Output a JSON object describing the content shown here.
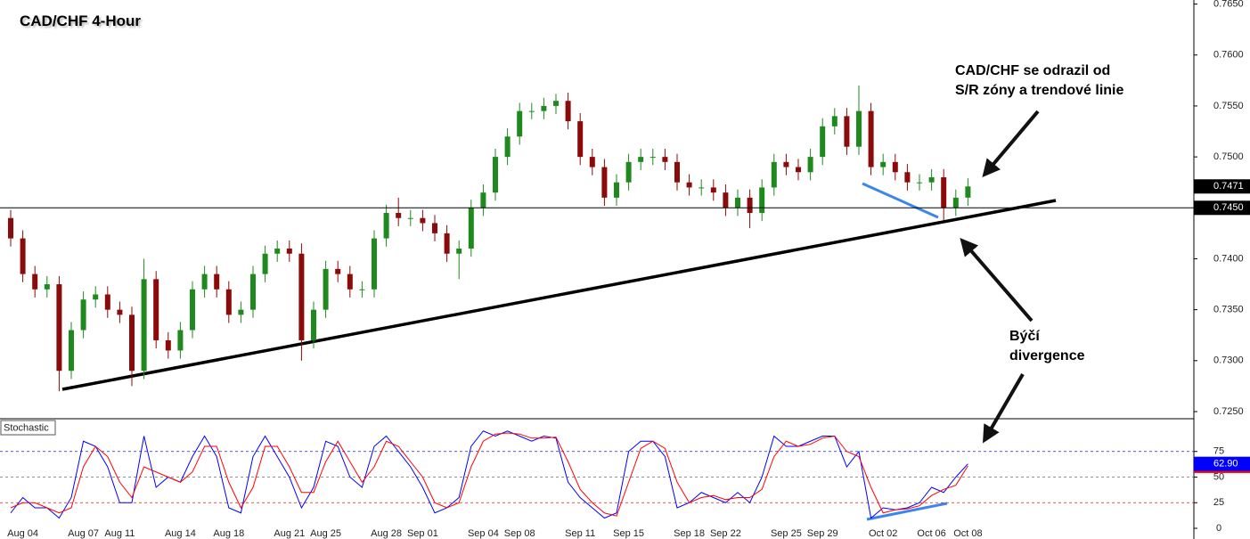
{
  "chart_data": [
    {
      "type": "candlestick",
      "title": "CAD/CHF 4-Hour",
      "categories": [
        null,
        "Aug 04",
        null,
        null,
        null,
        null,
        "Aug 07",
        null,
        null,
        "Aug 11",
        null,
        null,
        null,
        null,
        "Aug 14",
        null,
        null,
        null,
        "Aug 18",
        null,
        null,
        null,
        null,
        "Aug 21",
        null,
        null,
        "Aug 25",
        null,
        null,
        null,
        null,
        "Aug 28",
        null,
        null,
        "Sep 01",
        null,
        null,
        null,
        null,
        "Sep 04",
        null,
        null,
        "Sep 08",
        null,
        null,
        null,
        null,
        "Sep 11",
        null,
        null,
        null,
        "Sep 15",
        null,
        null,
        null,
        null,
        "Sep 18",
        null,
        null,
        "Sep 22",
        null,
        null,
        null,
        null,
        "Sep 25",
        null,
        null,
        "Sep 29",
        null,
        null,
        null,
        null,
        "Oct 02",
        null,
        null,
        null,
        "Oct 06",
        null,
        null,
        "Oct 08"
      ],
      "open": [
        0.744,
        0.742,
        0.7385,
        0.737,
        0.7375,
        0.729,
        0.733,
        0.736,
        0.7365,
        0.735,
        0.7345,
        0.729,
        0.738,
        0.732,
        0.731,
        0.733,
        0.737,
        0.7385,
        0.737,
        0.7345,
        0.735,
        0.7385,
        0.7405,
        0.741,
        0.7405,
        0.732,
        0.735,
        0.739,
        0.7385,
        0.737,
        0.737,
        0.742,
        0.7445,
        0.744,
        0.744,
        0.7435,
        0.7425,
        0.7405,
        0.741,
        0.745,
        0.7465,
        0.75,
        0.752,
        0.7545,
        0.7545,
        0.755,
        0.7555,
        0.7535,
        0.75,
        0.749,
        0.746,
        0.7475,
        0.7495,
        0.75,
        0.75,
        0.7495,
        0.7475,
        0.747,
        0.747,
        0.7465,
        0.745,
        0.746,
        0.7445,
        0.747,
        0.7495,
        0.749,
        0.7485,
        0.75,
        0.753,
        0.754,
        0.751,
        0.7545,
        0.749,
        0.7495,
        0.7485,
        0.7475,
        0.7475,
        0.748,
        0.745,
        0.746
      ],
      "high": [
        0.7448,
        0.7428,
        0.7393,
        0.7383,
        0.7383,
        0.7338,
        0.7368,
        0.7373,
        0.7373,
        0.7358,
        0.7353,
        0.74,
        0.7388,
        0.7328,
        0.7338,
        0.7378,
        0.7393,
        0.7393,
        0.7378,
        0.7358,
        0.7393,
        0.7413,
        0.7418,
        0.7418,
        0.7415,
        0.7358,
        0.7398,
        0.7398,
        0.7393,
        0.7378,
        0.7428,
        0.7453,
        0.746,
        0.7448,
        0.7448,
        0.7443,
        0.7433,
        0.7418,
        0.7458,
        0.7473,
        0.7508,
        0.7528,
        0.7553,
        0.7553,
        0.7558,
        0.7562,
        0.7563,
        0.7543,
        0.7508,
        0.7498,
        0.7483,
        0.7503,
        0.7508,
        0.7508,
        0.7508,
        0.7503,
        0.7483,
        0.7478,
        0.7478,
        0.7473,
        0.7468,
        0.7468,
        0.7478,
        0.7503,
        0.7503,
        0.7498,
        0.7508,
        0.7538,
        0.7548,
        0.7548,
        0.757,
        0.7553,
        0.7503,
        0.7503,
        0.7493,
        0.7483,
        0.7488,
        0.7488,
        0.7468,
        0.7479
      ],
      "low": [
        0.7412,
        0.7377,
        0.7362,
        0.7362,
        0.727,
        0.7282,
        0.7322,
        0.7352,
        0.7342,
        0.7337,
        0.7275,
        0.7282,
        0.7312,
        0.7302,
        0.7302,
        0.7322,
        0.7362,
        0.7362,
        0.7337,
        0.7337,
        0.7342,
        0.7377,
        0.7397,
        0.7397,
        0.73,
        0.7312,
        0.7342,
        0.7377,
        0.7362,
        0.7362,
        0.7362,
        0.7412,
        0.7432,
        0.7432,
        0.7427,
        0.7417,
        0.7397,
        0.738,
        0.7402,
        0.7442,
        0.7457,
        0.7492,
        0.7512,
        0.7537,
        0.7537,
        0.7542,
        0.7527,
        0.7492,
        0.7482,
        0.7452,
        0.7452,
        0.7467,
        0.7487,
        0.7492,
        0.7487,
        0.7467,
        0.7462,
        0.7462,
        0.7457,
        0.7442,
        0.7442,
        0.743,
        0.7437,
        0.7462,
        0.7482,
        0.7477,
        0.7477,
        0.7492,
        0.7522,
        0.7502,
        0.7502,
        0.7482,
        0.7482,
        0.7477,
        0.7467,
        0.7467,
        0.7467,
        0.7438,
        0.7442,
        0.7452
      ],
      "close": [
        0.742,
        0.7385,
        0.737,
        0.7375,
        0.729,
        0.733,
        0.736,
        0.7365,
        0.735,
        0.7345,
        0.729,
        0.738,
        0.732,
        0.731,
        0.733,
        0.737,
        0.7385,
        0.737,
        0.7345,
        0.735,
        0.7385,
        0.7405,
        0.741,
        0.7405,
        0.732,
        0.735,
        0.739,
        0.7385,
        0.737,
        0.737,
        0.742,
        0.7445,
        0.744,
        0.744,
        0.7435,
        0.7425,
        0.7405,
        0.741,
        0.745,
        0.7465,
        0.75,
        0.752,
        0.7545,
        0.7545,
        0.755,
        0.7555,
        0.7535,
        0.75,
        0.749,
        0.746,
        0.7475,
        0.7495,
        0.75,
        0.75,
        0.7495,
        0.7475,
        0.747,
        0.747,
        0.7465,
        0.745,
        0.746,
        0.7445,
        0.747,
        0.7495,
        0.749,
        0.7485,
        0.75,
        0.753,
        0.754,
        0.751,
        0.7545,
        0.749,
        0.7495,
        0.7485,
        0.7475,
        0.7475,
        0.748,
        0.745,
        0.746,
        0.7471
      ],
      "up_color": "#1e8a1e",
      "down_color": "#8b0a0a",
      "ylim": [
        0.7243,
        0.7654
      ],
      "yticks": [
        {
          "value": 0.725,
          "label": "0.7250"
        },
        {
          "value": 0.73,
          "label": "0.7300"
        },
        {
          "value": 0.735,
          "label": "0.7350"
        },
        {
          "value": 0.74,
          "label": "0.7400"
        },
        {
          "value": 0.745,
          "label": "0.7450"
        },
        {
          "value": 0.75,
          "label": "0.7500"
        },
        {
          "value": 0.755,
          "label": "0.7550"
        },
        {
          "value": 0.76,
          "label": "0.7600"
        },
        {
          "value": 0.765,
          "label": "0.7650"
        }
      ],
      "last_price": 0.7471,
      "level": {
        "value": 0.745,
        "label": "0.7450"
      },
      "annotations": [
        [
          "CAD/CHF se odrazil od",
          "S/R zóny a trendové linie"
        ],
        [
          "Býčí",
          "divergence"
        ]
      ]
    },
    {
      "type": "line",
      "title": "Stochastic",
      "series": [
        {
          "color": "#0000ff",
          "values": [
            15,
            30,
            20,
            20,
            10,
            30,
            85,
            80,
            60,
            25,
            25,
            90,
            40,
            50,
            45,
            70,
            90,
            70,
            20,
            15,
            70,
            90,
            70,
            50,
            20,
            40,
            85,
            80,
            50,
            40,
            80,
            90,
            75,
            60,
            40,
            15,
            20,
            30,
            80,
            95,
            90,
            95,
            90,
            85,
            90,
            88,
            45,
            30,
            20,
            10,
            15,
            75,
            85,
            85,
            70,
            20,
            25,
            35,
            30,
            25,
            35,
            25,
            50,
            90,
            80,
            80,
            85,
            90,
            90,
            60,
            75,
            10,
            20,
            18,
            20,
            25,
            40,
            35,
            50,
            62.9
          ],
          "value_labels": [
            null,
            null,
            null,
            null,
            null,
            null,
            null,
            null,
            null,
            null,
            null,
            null,
            null,
            null,
            null,
            null,
            null,
            null,
            null,
            null,
            null,
            null,
            null,
            null,
            null,
            null,
            null,
            null,
            null,
            null,
            null,
            null,
            null,
            null,
            null,
            null,
            null,
            null,
            null,
            null,
            null,
            null,
            null,
            null,
            null,
            null,
            null,
            null,
            null,
            null,
            null,
            null,
            null,
            null,
            null,
            null,
            null,
            null,
            null,
            null,
            null,
            null,
            null,
            null,
            null,
            null,
            null,
            null,
            null,
            null,
            null,
            null,
            null,
            null,
            null,
            null,
            null,
            null,
            null,
            "62.90"
          ]
        },
        {
          "color": "#ff0000",
          "values": [
            20,
            25,
            25,
            20,
            15,
            20,
            60,
            80,
            70,
            45,
            30,
            60,
            55,
            50,
            45,
            55,
            80,
            80,
            45,
            20,
            40,
            80,
            80,
            60,
            35,
            35,
            65,
            85,
            65,
            45,
            60,
            85,
            80,
            65,
            50,
            25,
            20,
            25,
            60,
            85,
            92,
            93,
            92,
            88,
            88,
            89,
            65,
            38,
            25,
            15,
            12,
            45,
            78,
            85,
            78,
            45,
            25,
            30,
            32,
            28,
            30,
            30,
            38,
            70,
            85,
            80,
            82,
            88,
            90,
            75,
            70,
            40,
            15,
            18,
            19,
            22,
            32,
            38,
            42,
            60.95
          ]
        }
      ],
      "ylim": [
        0,
        100
      ],
      "yticks": [
        0,
        25,
        50,
        75
      ],
      "grid_colors": [
        null,
        "#d02020",
        "#707070",
        "#2020c0"
      ]
    }
  ]
}
